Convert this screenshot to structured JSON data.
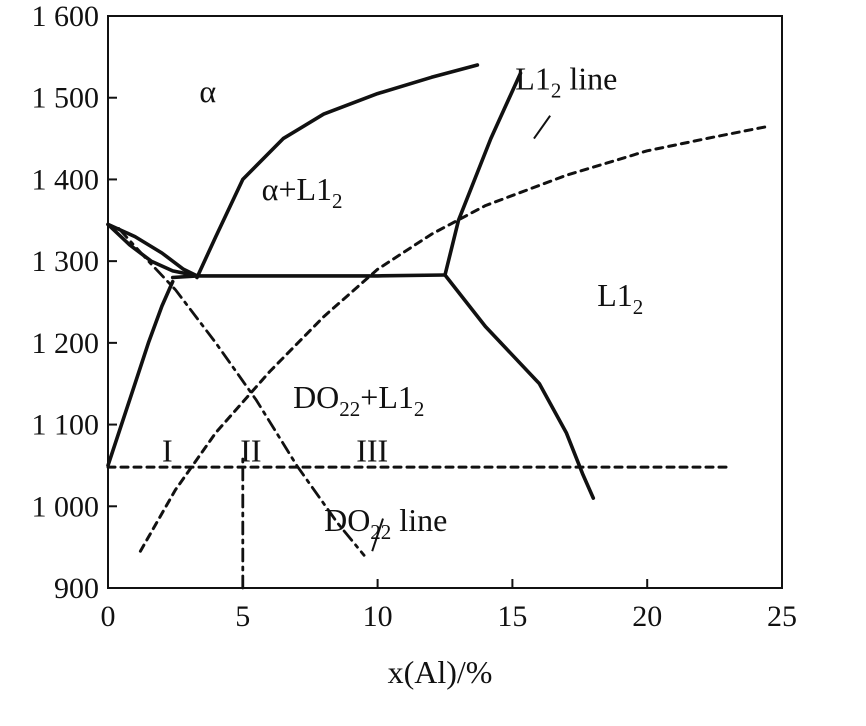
{
  "chart_data": {
    "type": "line",
    "title": "",
    "xlabel": "x(Al)/%",
    "ylabel": "",
    "xlim": [
      0,
      25
    ],
    "ylim": [
      900,
      1600
    ],
    "x_ticks": [
      "0",
      "5",
      "10",
      "15",
      "20",
      "25"
    ],
    "y_ticks": [
      "900",
      "1 000",
      "1 100",
      "1 200",
      "1 300",
      "1 400",
      "1 500",
      "1 600"
    ],
    "grid": false,
    "series": [
      {
        "style": "solid",
        "x": [
          3.3,
          4.0,
          5.0,
          6.5,
          8.0,
          10.0,
          12.0,
          13.7
        ],
        "y": [
          1280,
          1330,
          1400,
          1450,
          1480,
          1505,
          1525,
          1540
        ]
      },
      {
        "style": "solid",
        "x": [
          12.5,
          13.0,
          14.2,
          15.3
        ],
        "y": [
          1283,
          1350,
          1450,
          1530
        ]
      },
      {
        "style": "solid",
        "x": [
          2.4,
          3.3,
          6.0,
          10.0,
          12.5
        ],
        "y": [
          1280,
          1282,
          1282,
          1282,
          1283
        ]
      },
      {
        "style": "solid",
        "x": [
          12.5,
          14.0,
          16.0,
          17.0,
          17.6,
          18.0
        ],
        "y": [
          1283,
          1220,
          1150,
          1090,
          1040,
          1010
        ]
      },
      {
        "style": "solid",
        "x": [
          0.0,
          0.5,
          1.0,
          1.5,
          2.0,
          2.4
        ],
        "y": [
          1050,
          1100,
          1150,
          1200,
          1245,
          1275
        ]
      },
      {
        "style": "solid",
        "x": [
          0.0,
          1.0,
          2.0,
          2.8,
          3.3
        ],
        "y": [
          1345,
          1330,
          1310,
          1290,
          1282
        ]
      },
      {
        "style": "solid",
        "x": [
          0.0,
          0.8,
          1.6,
          2.4,
          3.3
        ],
        "y": [
          1345,
          1320,
          1300,
          1288,
          1282
        ]
      },
      {
        "style": "dashed",
        "x": [
          1.2,
          2.5,
          4.0,
          6.0,
          8.0,
          10.0,
          12.0,
          14.0,
          17.0,
          20.0,
          22.5,
          24.5
        ],
        "y": [
          945,
          1020,
          1090,
          1165,
          1232,
          1290,
          1333,
          1368,
          1405,
          1435,
          1452,
          1465
        ]
      },
      {
        "style": "dashdot",
        "x": [
          0.4,
          1.5,
          2.5,
          4.0,
          5.5,
          7.0,
          8.5,
          9.5
        ],
        "y": [
          1340,
          1300,
          1265,
          1200,
          1130,
          1050,
          980,
          940
        ]
      },
      {
        "style": "dashed",
        "x": [
          0.0,
          23.0
        ],
        "y": [
          1048,
          1048
        ]
      },
      {
        "style": "dashdot",
        "x": [
          5.0,
          5.0
        ],
        "y": [
          900,
          1060
        ]
      }
    ],
    "annotations": [
      {
        "text": "α",
        "x": 3.7,
        "y": 1495
      },
      {
        "text": "α+L1",
        "sub": "2",
        "x": 7.2,
        "y": 1375
      },
      {
        "text": "L1",
        "sub": "2",
        "x": 19.0,
        "y": 1245
      },
      {
        "text": "DO",
        "sub": "22",
        "tail": "+L1",
        "tail_sub": "2",
        "x": 9.3,
        "y": 1120
      },
      {
        "text": "I",
        "x": 2.2,
        "y": 1055
      },
      {
        "text": "II",
        "x": 5.3,
        "y": 1055
      },
      {
        "text": "III",
        "x": 9.8,
        "y": 1055
      },
      {
        "text": "L1",
        "sub": "2",
        "tail": " line",
        "x": 17.0,
        "y": 1510
      },
      {
        "text": "DO",
        "sub": "22",
        "tail": " line",
        "x": 10.3,
        "y": 970
      }
    ],
    "leaders": [
      {
        "x": [
          16.4,
          15.8
        ],
        "y": [
          1478,
          1450
        ]
      },
      {
        "x": [
          10.2,
          9.8
        ],
        "y": [
          985,
          945
        ]
      }
    ]
  }
}
